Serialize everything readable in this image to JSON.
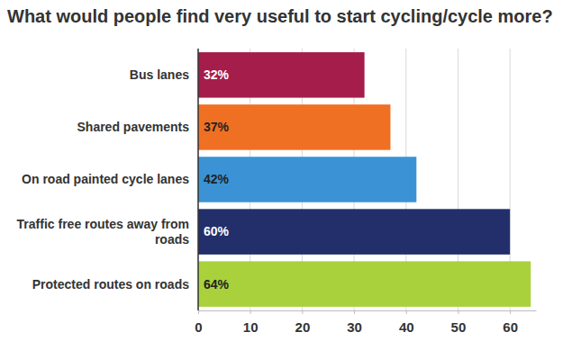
{
  "chart_data": {
    "type": "bar",
    "orientation": "horizontal",
    "title": "What would people find very useful to start cycling/cycle more?",
    "categories": [
      "Bus lanes",
      "Shared pavements",
      "On road painted cycle lanes",
      "Traffic free routes away from roads",
      "Protected routes on roads"
    ],
    "values": [
      32,
      37,
      42,
      60,
      64
    ],
    "value_labels": [
      "32%",
      "37%",
      "42%",
      "60%",
      "64%"
    ],
    "colors": [
      "#a51d4a",
      "#f07023",
      "#3b93d5",
      "#232f6b",
      "#a9d13c"
    ],
    "xlim": [
      0,
      65
    ],
    "xticks": [
      0,
      10,
      20,
      30,
      40,
      50,
      60
    ],
    "grid": true,
    "data_labels": true
  }
}
